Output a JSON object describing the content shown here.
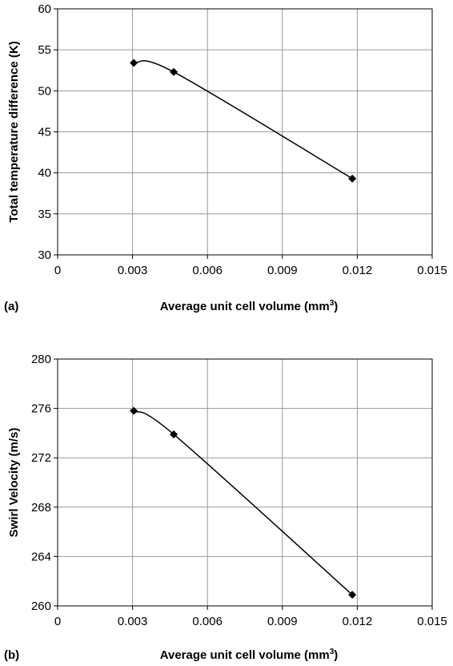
{
  "chart_data": [
    {
      "type": "line",
      "panel_label": "(a)",
      "xlabel": "Average unit cell volume (mm",
      "xlabel_sup": "3",
      "xlabel_end": ")",
      "ylabel": "Total temperature difference (K)",
      "xlim": [
        0,
        0.015
      ],
      "ylim": [
        30,
        60
      ],
      "x_ticks": [
        "0",
        "0.003",
        "0.006",
        "0.009",
        "0.012",
        "0.015"
      ],
      "y_ticks": [
        "30",
        "35",
        "40",
        "45",
        "50",
        "55",
        "60"
      ],
      "grid": true,
      "series": [
        {
          "x": [
            0.00305,
            0.00465,
            0.0118
          ],
          "y": [
            53.4,
            52.3,
            39.3
          ]
        }
      ]
    },
    {
      "type": "line",
      "panel_label": "(b)",
      "xlabel": "Average unit cell volume (mm",
      "xlabel_sup": "3",
      "xlabel_end": ")",
      "ylabel": "Swirl Velocity (m/s)",
      "xlim": [
        0,
        0.015
      ],
      "ylim": [
        260,
        280
      ],
      "x_ticks": [
        "0",
        "0.003",
        "0.006",
        "0.009",
        "0.012",
        "0.015"
      ],
      "y_ticks": [
        "260",
        "264",
        "268",
        "272",
        "276",
        "280"
      ],
      "grid": true,
      "series": [
        {
          "x": [
            0.00305,
            0.00465,
            0.0118
          ],
          "y": [
            275.8,
            273.9,
            260.9
          ]
        }
      ]
    }
  ]
}
